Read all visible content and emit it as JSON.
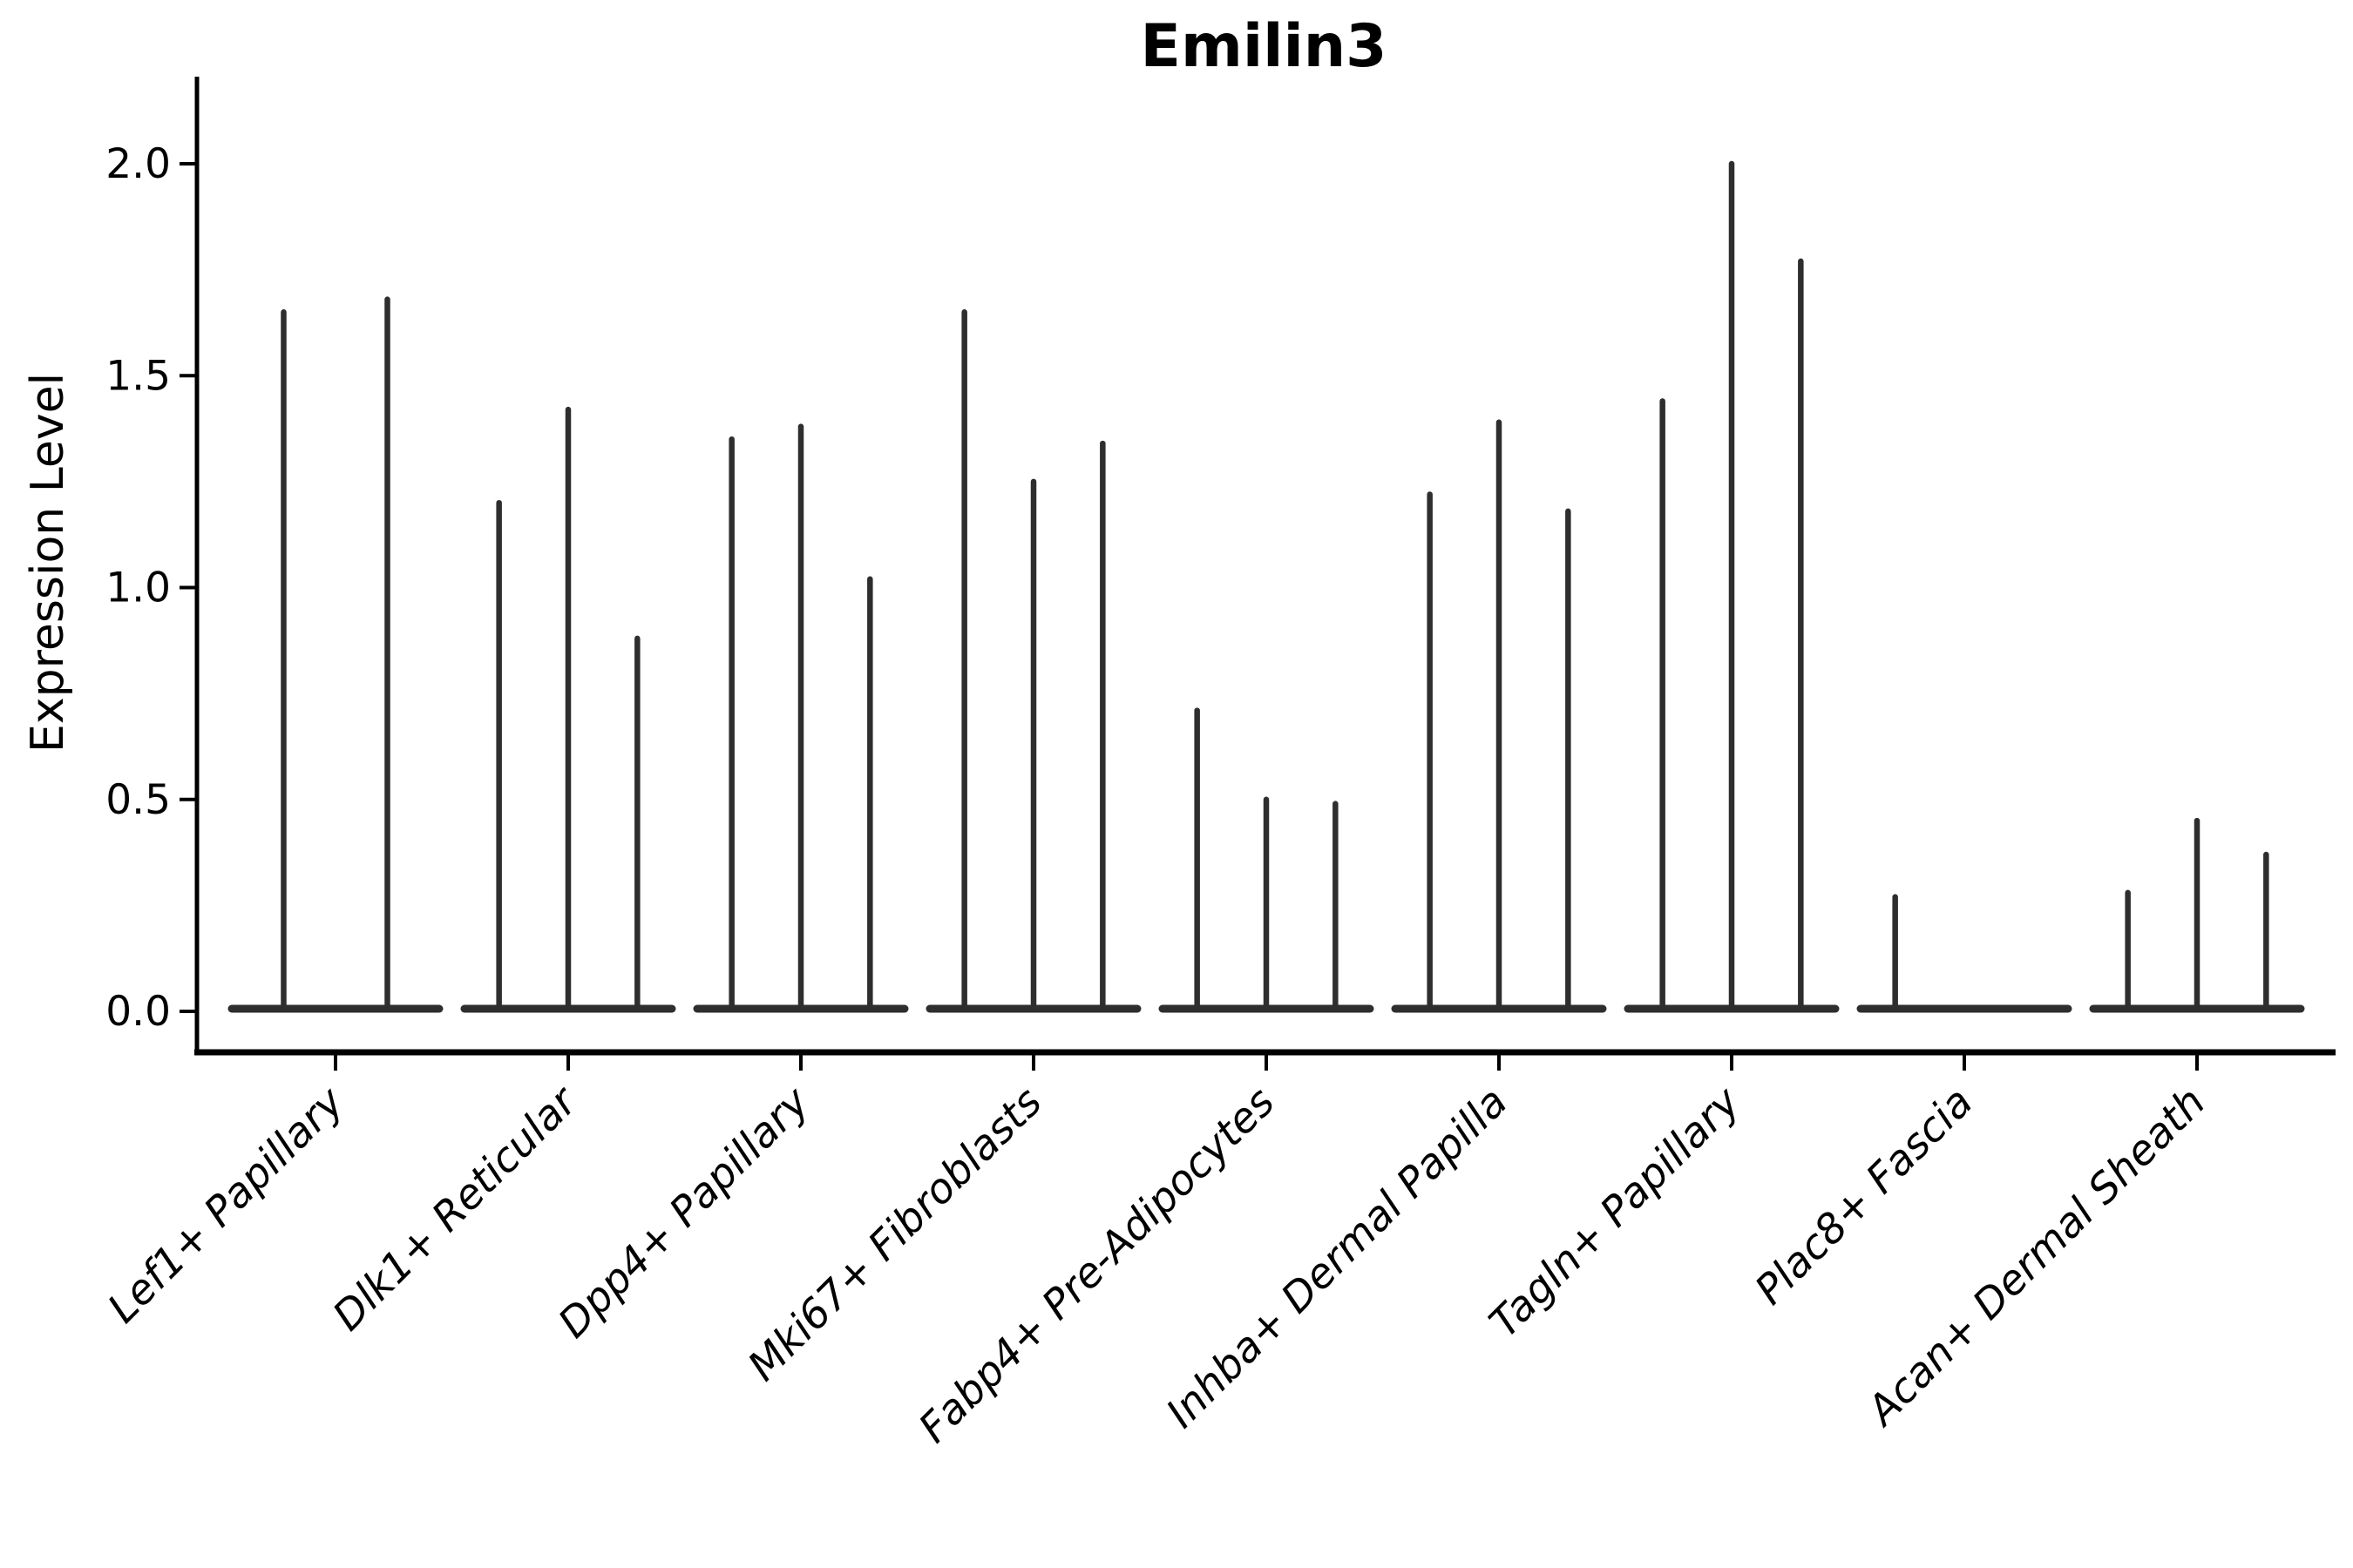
{
  "title": "Emilin3",
  "y_axis": {
    "label": "Expression Level",
    "tick_labels": [
      "0.0",
      "0.5",
      "1.0",
      "1.5",
      "2.0"
    ]
  },
  "chart_data": {
    "type": "violin",
    "title": "Emilin3",
    "xlabel": "",
    "ylabel": "Expression Level",
    "ylim": [
      0,
      2.05
    ],
    "yticks": [
      0.0,
      0.5,
      1.0,
      1.5,
      2.0
    ],
    "grid": false,
    "legend": "none",
    "x_tick_rotation": 45,
    "background": "#ffffff",
    "axis_color": "#000000",
    "violin_color": "#2e2e2e",
    "violin_style": "thin violins: mass concentrated at 0 with a narrow vertical tail up to the max value",
    "categories": [
      "Lef1+ Papillary",
      "Dlk1+ Reticular",
      "Dpp4+ Papillary",
      "Mki67+ Fibroblasts",
      "Fabp4+ Pre-Adipocytes",
      "Inhba+ Dermal Papilla",
      "Tagln+ Papillary",
      "Plac8+ Fascia",
      "Acan+ Dermal Sheath"
    ],
    "violins": [
      {
        "category": "Lef1+ Papillary",
        "values": [
          1.65,
          1.68
        ]
      },
      {
        "category": "Dlk1+ Reticular",
        "values": [
          1.2,
          1.42,
          0.88
        ]
      },
      {
        "category": "Dpp4+ Papillary",
        "values": [
          1.35,
          1.38,
          1.02
        ]
      },
      {
        "category": "Mki67+ Fibroblasts",
        "values": [
          1.65,
          1.25,
          1.34
        ]
      },
      {
        "category": "Fabp4+ Pre-Adipocytes",
        "values": [
          0.71,
          0.5,
          0.49
        ]
      },
      {
        "category": "Inhba+ Dermal Papilla",
        "values": [
          1.22,
          1.39,
          1.18
        ]
      },
      {
        "category": "Tagln+ Papillary",
        "values": [
          1.44,
          2.0,
          1.77
        ]
      },
      {
        "category": "Plac8+ Fascia",
        "values": [
          0.27,
          0.0,
          0.0
        ]
      },
      {
        "category": "Acan+ Dermal Sheath",
        "values": [
          0.28,
          0.45,
          0.37
        ]
      }
    ]
  }
}
